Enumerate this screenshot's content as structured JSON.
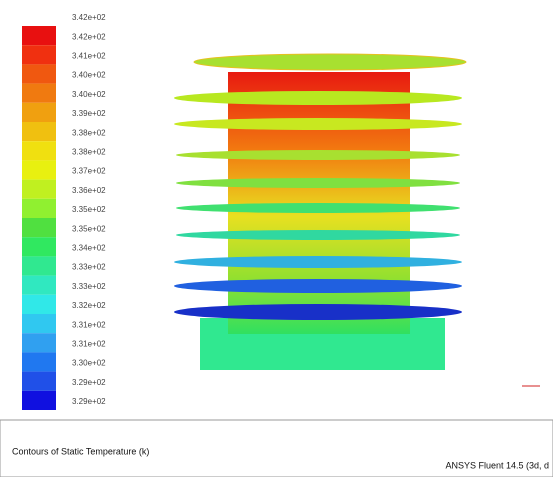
{
  "legend": {
    "labels": [
      "3.42e+02",
      "3.42e+02",
      "3.41e+02",
      "3.40e+02",
      "3.40e+02",
      "3.39e+02",
      "3.38e+02",
      "3.38e+02",
      "3.37e+02",
      "3.36e+02",
      "3.35e+02",
      "3.35e+02",
      "3.34e+02",
      "3.33e+02",
      "3.33e+02",
      "3.32e+02",
      "3.31e+02",
      "3.31e+02",
      "3.30e+02",
      "3.29e+02",
      "3.29e+02"
    ]
  },
  "footer": {
    "title": "Contours of Static Temperature (k)",
    "software": "ANSYS Fluent 14.5 (3d, d"
  }
}
